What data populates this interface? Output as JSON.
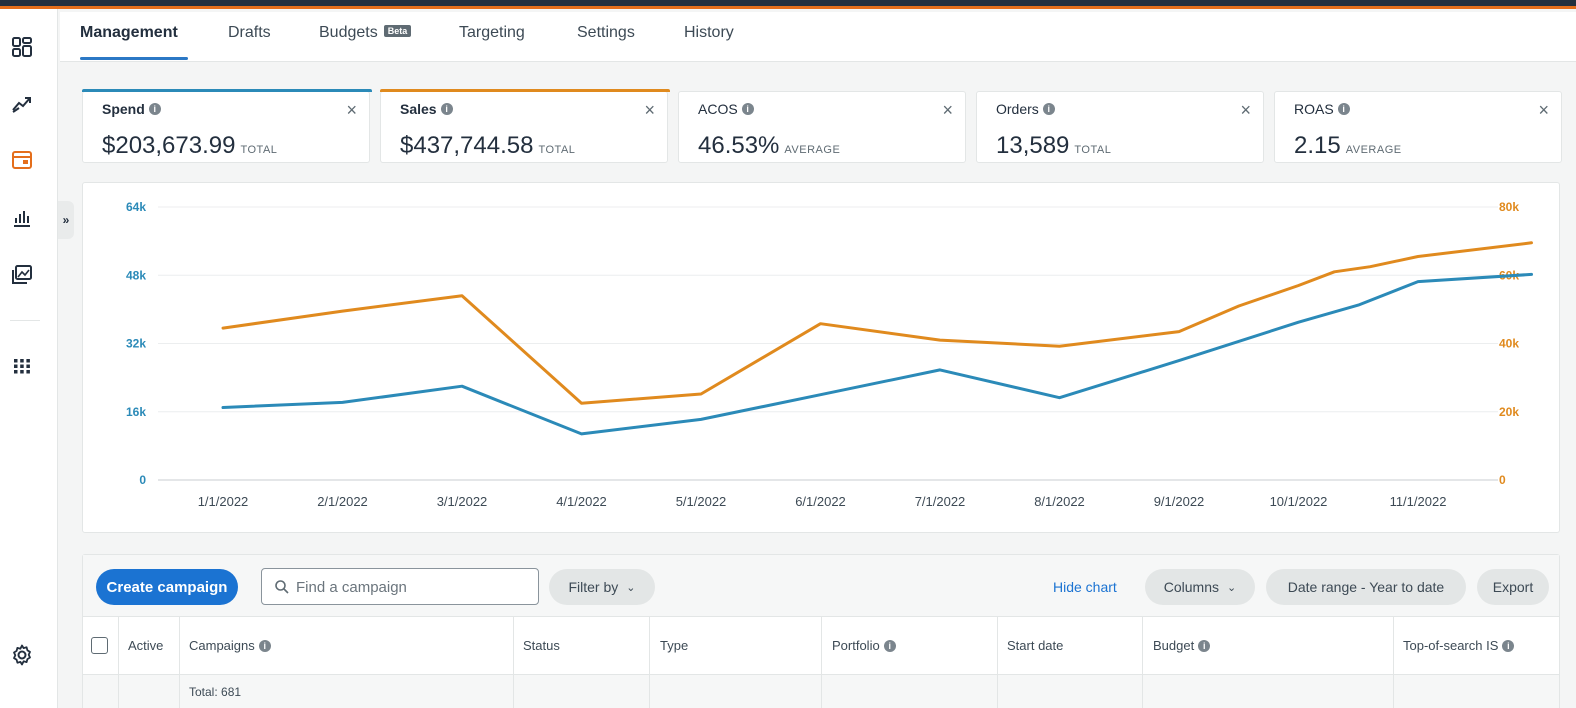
{
  "tabs": [
    {
      "label": "Management",
      "active": true
    },
    {
      "label": "Drafts"
    },
    {
      "label": "Budgets",
      "badge": "Beta"
    },
    {
      "label": "Targeting"
    },
    {
      "label": "Settings"
    },
    {
      "label": "History"
    }
  ],
  "metrics": [
    {
      "label": "Spend",
      "value": "$203,673.99",
      "suffix": "TOTAL",
      "accent": "#2b8ab8"
    },
    {
      "label": "Sales",
      "value": "$437,744.58",
      "suffix": "TOTAL",
      "accent": "#e08a1e"
    },
    {
      "label": "ACOS",
      "value": "46.53%",
      "suffix": "AVERAGE"
    },
    {
      "label": "Orders",
      "value": "13,589",
      "suffix": "TOTAL"
    },
    {
      "label": "ROAS",
      "value": "2.15",
      "suffix": "AVERAGE"
    }
  ],
  "chart_data": {
    "type": "line",
    "x": [
      "1/1/2022",
      "2/1/2022",
      "3/1/2022",
      "4/1/2022",
      "5/1/2022",
      "6/1/2022",
      "7/1/2022",
      "8/1/2022",
      "9/1/2022",
      "10/1/2022",
      "11/1/2022"
    ],
    "x_values": [
      0,
      1,
      2,
      3,
      4,
      5,
      6,
      6.9,
      7.8,
      8.5,
      8.9,
      9.2,
      9.7,
      10,
      10.5,
      10.9
    ],
    "series": [
      {
        "color": "#2b8ab8",
        "axis": "left",
        "points": [
          [
            0,
            17000
          ],
          [
            1,
            18200
          ],
          [
            2,
            22000
          ],
          [
            3,
            10800
          ],
          [
            4,
            14200
          ],
          [
            5,
            20000
          ],
          [
            6,
            25800
          ],
          [
            7,
            19300
          ],
          [
            8,
            28000
          ],
          [
            9,
            37000
          ],
          [
            9.5,
            41000
          ],
          [
            10,
            46500
          ],
          [
            10.95,
            48200
          ]
        ]
      },
      {
        "color": "#e08a1e",
        "axis": "right",
        "points": [
          [
            0,
            44500
          ],
          [
            1,
            49500
          ],
          [
            2,
            54000
          ],
          [
            3,
            22500
          ],
          [
            4,
            25200
          ],
          [
            5,
            45800
          ],
          [
            6,
            41000
          ],
          [
            7,
            39200
          ],
          [
            8,
            43500
          ],
          [
            8.5,
            51000
          ],
          [
            9,
            57000
          ],
          [
            9.3,
            61000
          ],
          [
            9.6,
            62500
          ],
          [
            10,
            65500
          ],
          [
            10.95,
            69500
          ]
        ]
      }
    ],
    "y_left": {
      "ticks": [
        "0",
        "16k",
        "32k",
        "48k",
        "64k"
      ],
      "range": [
        0,
        64000
      ],
      "color": "#2b8ab8"
    },
    "y_right": {
      "ticks": [
        "0",
        "20k",
        "40k",
        "60k",
        "80k"
      ],
      "range": [
        0,
        80000
      ],
      "color": "#e08a1e"
    },
    "grid": true
  },
  "toolbar": {
    "create_label": "Create campaign",
    "search_placeholder": "Find a campaign",
    "filter_label": "Filter by",
    "hide_chart_label": "Hide chart",
    "columns_label": "Columns",
    "date_range_label": "Date range - Year to date",
    "export_label": "Export"
  },
  "table": {
    "headers": [
      "Active",
      "Campaigns",
      "Status",
      "Type",
      "Portfolio",
      "Start date",
      "Budget",
      "Top-of-search IS"
    ],
    "total_label": "Total: 681"
  },
  "icons": {
    "nav": [
      "dashboard-icon",
      "trend-icon",
      "campaign-icon",
      "bar-chart-icon",
      "media-icon",
      "apps-grid-icon"
    ],
    "settings": "gear-icon",
    "info": "info-icon",
    "close": "close-icon"
  }
}
